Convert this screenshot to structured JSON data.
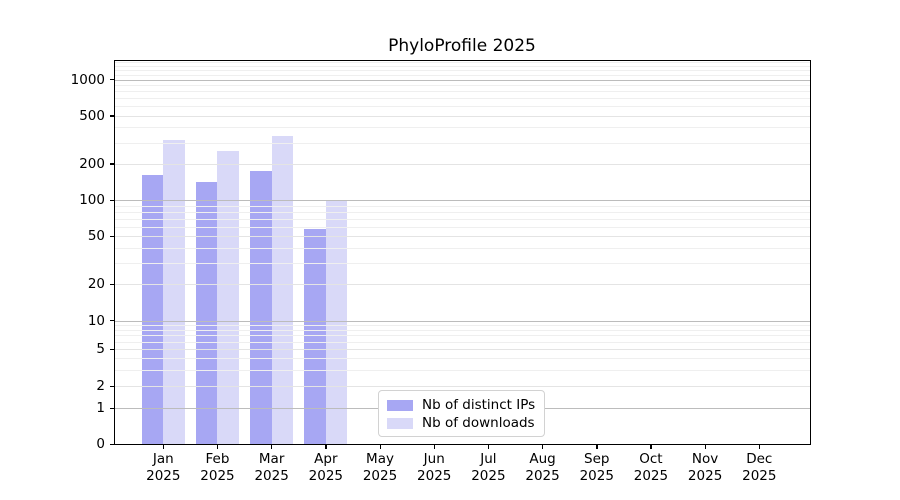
{
  "title": "PhyloProfile 2025",
  "chart_data": {
    "type": "bar",
    "title": "PhyloProfile 2025",
    "yscale": "symlog",
    "ylim": [
      0,
      1400
    ],
    "grid": "horizontal",
    "legend_position": "lower center",
    "x": {
      "months": [
        "Jan",
        "Feb",
        "Mar",
        "Apr",
        "May",
        "Jun",
        "Jul",
        "Aug",
        "Sep",
        "Oct",
        "Nov",
        "Dec"
      ],
      "year": "2025"
    },
    "categories": [
      "Jan 2025",
      "Feb 2025",
      "Mar 2025",
      "Apr 2025",
      "May 2025",
      "Jun 2025",
      "Jul 2025",
      "Aug 2025",
      "Sep 2025",
      "Oct 2025",
      "Nov 2025",
      "Dec 2025"
    ],
    "y_ticks": [
      {
        "value": 0,
        "label": "0"
      },
      {
        "value": 1,
        "label": "1"
      },
      {
        "value": 2,
        "label": "2"
      },
      {
        "value": 5,
        "label": "5"
      },
      {
        "value": 10,
        "label": "10"
      },
      {
        "value": 20,
        "label": "20"
      },
      {
        "value": 50,
        "label": "50"
      },
      {
        "value": 100,
        "label": "100"
      },
      {
        "value": 200,
        "label": "200"
      },
      {
        "value": 500,
        "label": "500"
      },
      {
        "value": 1000,
        "label": "1000"
      }
    ],
    "series": [
      {
        "name": "Nb of distinct IPs",
        "color": "#a7a7f3",
        "values": [
          162,
          142,
          174,
          57,
          null,
          null,
          null,
          null,
          null,
          null,
          null,
          null
        ]
      },
      {
        "name": "Nb of downloads",
        "color": "#d9d9f8",
        "values": [
          315,
          255,
          340,
          100,
          null,
          null,
          null,
          null,
          null,
          null,
          null,
          null
        ]
      }
    ]
  }
}
